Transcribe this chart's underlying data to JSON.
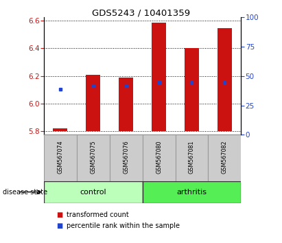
{
  "title": "GDS5243 / 10401359",
  "samples": [
    "GSM567074",
    "GSM567075",
    "GSM567076",
    "GSM567080",
    "GSM567081",
    "GSM567082"
  ],
  "bar_bottom": 5.8,
  "bar_tops": [
    5.82,
    6.21,
    6.19,
    6.585,
    6.4,
    6.545
  ],
  "blue_dots": [
    6.105,
    6.13,
    6.13,
    6.155,
    6.155,
    6.155
  ],
  "ylim": [
    5.775,
    6.625
  ],
  "yticks_left": [
    5.8,
    6.0,
    6.2,
    6.4,
    6.6
  ],
  "yticks_right": [
    0,
    25,
    50,
    75,
    100
  ],
  "bar_color": "#cc1111",
  "blue_color": "#2244cc",
  "bar_width": 0.45,
  "group_control_color": "#bbffbb",
  "group_arthritis_color": "#55ee55",
  "disease_state_label": "disease state",
  "legend_red": "transformed count",
  "legend_blue": "percentile rank within the sample",
  "ytick_color_left": "#cc1111",
  "ytick_color_right": "#2244cc",
  "label_box_color": "#cccccc",
  "label_box_edge": "#999999"
}
